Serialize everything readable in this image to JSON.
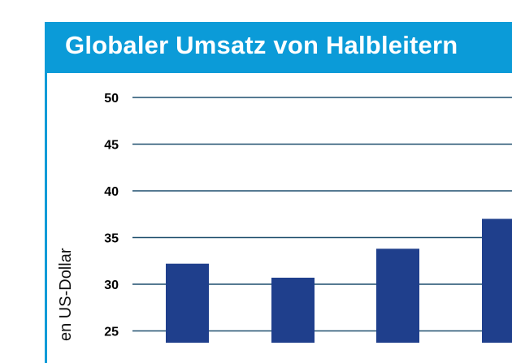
{
  "colors": {
    "header": "#0b9bd8",
    "bar": "#1f3f8c",
    "grid": "#1f4f6e"
  },
  "chart_data": {
    "type": "bar",
    "title": "Globaler Umsatz von Halbleitern",
    "ylabel": "en US-Dollar",
    "ylim": [
      22,
      52
    ],
    "yticks": [
      25,
      30,
      35,
      40,
      45,
      50
    ],
    "grid": true,
    "values": [
      32.2,
      30.7,
      33.8,
      37.0
    ]
  }
}
